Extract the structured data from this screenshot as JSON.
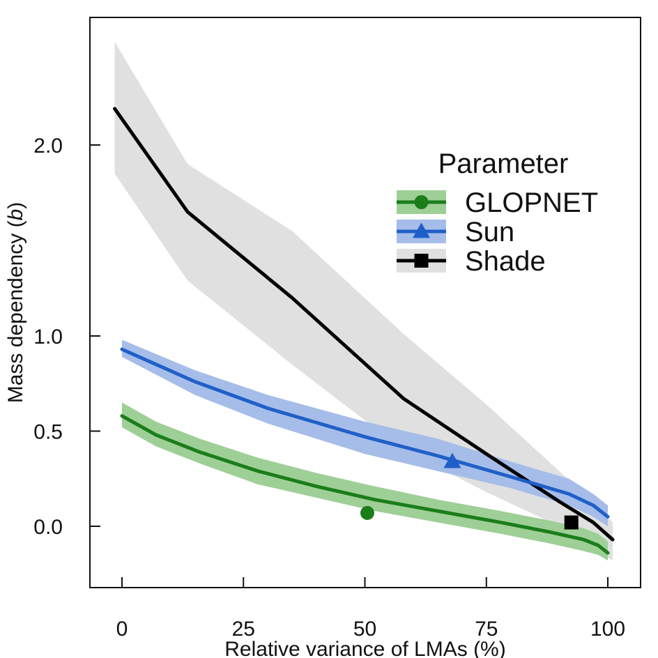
{
  "chart_data": {
    "type": "line",
    "title": "",
    "xlabel": "Relative variance of LMAs (%)",
    "ylabel": "Mass dependency (b)",
    "ylabel_parts": [
      "Mass dependency (",
      "b",
      ")"
    ],
    "xlim": [
      -6.5,
      107
    ],
    "x_ticks": [
      0,
      25,
      50,
      75,
      100
    ],
    "x_tick_labels": [
      "0",
      "25",
      "50",
      "75",
      "100"
    ],
    "y_ticks": [
      0.0,
      0.5,
      1.0,
      2.0
    ],
    "y_tick_labels": [
      "0.0",
      "0.5",
      "1.0",
      "2.0"
    ],
    "y_scale": "piecewise: 0–1 per 0.5 unit, 1–2 compressed",
    "grid": false,
    "legend": {
      "title": "Parameter",
      "placement": "top-right"
    },
    "series": [
      {
        "name": "GLOPNET",
        "color": "#1a7d1a",
        "band_color": "#9ecf96",
        "marker": "circle",
        "marker_point": {
          "x": 50.5,
          "y": 0.07
        },
        "x": [
          0,
          7,
          16,
          28,
          40,
          52,
          65,
          78,
          88,
          95,
          98,
          100
        ],
        "y": [
          0.58,
          0.48,
          0.39,
          0.29,
          0.21,
          0.14,
          0.08,
          0.02,
          -0.03,
          -0.07,
          -0.1,
          -0.14
        ],
        "lower": [
          0.52,
          0.42,
          0.33,
          0.22,
          0.15,
          0.08,
          0.02,
          -0.04,
          -0.09,
          -0.13,
          -0.15,
          -0.18
        ],
        "upper": [
          0.65,
          0.55,
          0.46,
          0.36,
          0.28,
          0.21,
          0.14,
          0.08,
          0.03,
          -0.01,
          -0.04,
          -0.08
        ]
      },
      {
        "name": "Sun",
        "color": "#1f5fc8",
        "band_color": "#a5bde8",
        "marker": "triangle",
        "marker_point": {
          "x": 68,
          "y": 0.34
        },
        "x": [
          0,
          15,
          30,
          50,
          65,
          80,
          92,
          97,
          100
        ],
        "y": [
          0.93,
          0.76,
          0.62,
          0.47,
          0.37,
          0.26,
          0.17,
          0.11,
          0.05
        ],
        "lower": [
          0.89,
          0.69,
          0.54,
          0.38,
          0.29,
          0.2,
          0.11,
          0.05,
          0.0
        ],
        "upper": [
          0.98,
          0.82,
          0.69,
          0.55,
          0.46,
          0.34,
          0.25,
          0.17,
          0.11
        ]
      },
      {
        "name": "Shade",
        "color": "#000000",
        "band_color": "#e0e0e0",
        "marker": "square",
        "marker_point": {
          "x": 92.5,
          "y": 0.02
        },
        "x": [
          -1.5,
          13.5,
          35,
          58,
          75,
          90,
          97,
          101
        ],
        "y": [
          2.19,
          1.65,
          1.2,
          0.67,
          0.38,
          0.13,
          0.02,
          -0.07
        ],
        "lower": [
          1.85,
          1.29,
          0.85,
          0.4,
          0.18,
          0.0,
          -0.12,
          -0.18
        ],
        "upper": [
          2.54,
          1.9,
          1.55,
          1.01,
          0.64,
          0.29,
          0.12,
          0.02
        ]
      }
    ]
  }
}
